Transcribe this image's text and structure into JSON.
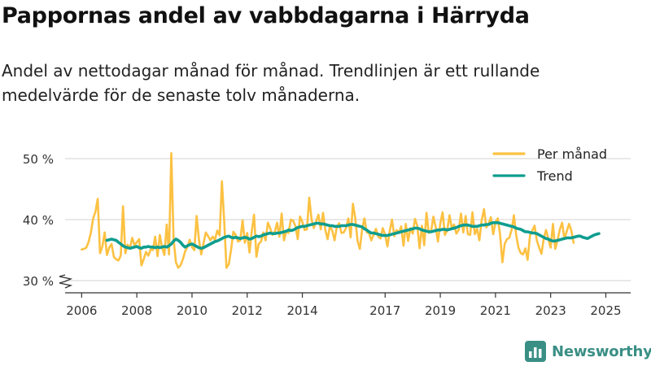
{
  "header": {
    "title": "Pappornas andel av vabbdagarna i Härryda",
    "subtitle": "Andel av nettodagar månad för månad. Trendlinjen är ett rullande medelvärde för de senaste tolv månaderna."
  },
  "brand": {
    "name": "Newsworthy",
    "icon": "bar-chart-logo-icon"
  },
  "colors": {
    "monthly": "#fcc142",
    "trend": "#0f9d8f",
    "grid": "#d9d9d9",
    "text": "#222222",
    "brand": "#3a8f85"
  },
  "chart_data": {
    "type": "line",
    "title": "Pappornas andel av vabbdagarna i Härryda",
    "xlabel": "",
    "ylabel": "",
    "ylim": [
      28,
      52
    ],
    "y_ticks": [
      30,
      40,
      50
    ],
    "y_tick_labels": [
      "30 %",
      "40 %",
      "50 %"
    ],
    "x_ticks": [
      2006,
      2008,
      2010,
      2012,
      2014,
      2017,
      2019,
      2021,
      2023,
      2025
    ],
    "x_range": [
      2005.4,
      2025.9
    ],
    "y_axis_break": true,
    "legend": {
      "position": "top-right",
      "entries": [
        "Per månad",
        "Trend"
      ]
    },
    "series": [
      {
        "name": "Per månad",
        "x_start": 2006.0,
        "step": 0.0833333,
        "values": [
          35.1,
          35.2,
          35.4,
          36.3,
          37.8,
          40.2,
          41.3,
          43.4,
          34.5,
          35.6,
          37.9,
          34.2,
          35.4,
          36.0,
          33.9,
          33.5,
          33.3,
          34.1,
          42.2,
          34.5,
          35.9,
          35.3,
          37.0,
          35.8,
          36.3,
          36.8,
          32.5,
          33.5,
          34.7,
          34.1,
          35.1,
          35.0,
          37.2,
          34.0,
          37.5,
          35.4,
          34.2,
          39.2,
          34.3,
          50.9,
          36.8,
          33.0,
          32.1,
          32.5,
          33.5,
          34.8,
          35.5,
          36.7,
          35.5,
          35.0,
          40.6,
          36.8,
          34.3,
          36.1,
          37.9,
          37.3,
          36.6,
          37.2,
          36.7,
          38.2,
          37.4,
          46.3,
          39.8,
          32.1,
          32.7,
          35.1,
          38.0,
          37.5,
          36.4,
          36.6,
          39.9,
          36.2,
          37.8,
          34.6,
          38.1,
          40.8,
          33.9,
          36.0,
          36.4,
          37.9,
          36.6,
          39.5,
          38.6,
          37.5,
          38.0,
          39.5,
          37.2,
          41.0,
          36.6,
          38.1,
          37.8,
          40.0,
          39.8,
          38.9,
          36.8,
          40.5,
          39.6,
          38.3,
          38.4,
          43.6,
          40.0,
          38.6,
          39.7,
          40.8,
          38.4,
          41.1,
          38.3,
          36.8,
          39.0,
          38.2,
          36.6,
          38.8,
          39.4,
          37.8,
          37.9,
          38.6,
          40.2,
          37.1,
          42.6,
          40.3,
          36.5,
          35.2,
          38.4,
          40.2,
          37.9,
          37.8,
          36.6,
          37.5,
          38.5,
          37.2,
          36.9,
          38.6,
          37.5,
          35.6,
          38.1,
          40.0,
          37.3,
          38.3,
          37.8,
          38.9,
          35.7,
          39.3,
          36.5,
          38.6,
          37.7,
          40.1,
          39.0,
          35.3,
          39.0,
          35.8,
          41.1,
          37.8,
          38.1,
          40.5,
          38.8,
          36.4,
          39.4,
          41.2,
          37.5,
          38.2,
          40.7,
          38.6,
          39.2,
          37.7,
          38.3,
          41.0,
          37.9,
          40.6,
          37.6,
          37.5,
          41.2,
          37.6,
          38.5,
          36.6,
          39.9,
          41.7,
          38.7,
          39.3,
          40.4,
          37.6,
          39.6,
          40.2,
          37.6,
          33.0,
          36.0,
          36.8,
          37.0,
          38.3,
          40.7,
          37.5,
          35.4,
          34.5,
          34.3,
          35.3,
          33.4,
          37.4,
          38.2,
          39.0,
          36.6,
          35.4,
          34.4,
          36.9,
          38.3,
          36.8,
          35.4,
          39.3,
          35.2,
          36.6,
          38.4,
          39.5,
          36.8,
          38.1,
          39.3,
          38.2,
          36.2
        ]
      },
      {
        "name": "Trend",
        "x_start": 2006.9167,
        "step": 0.0833333,
        "values": [
          36.6,
          36.7,
          36.8,
          36.7,
          36.6,
          36.3,
          36.0,
          35.7,
          35.5,
          35.4,
          35.3,
          35.4,
          35.5,
          35.6,
          35.4,
          35.3,
          35.5,
          35.5,
          35.6,
          35.5,
          35.5,
          35.4,
          35.5,
          35.4,
          35.5,
          35.6,
          35.5,
          35.7,
          36.0,
          36.5,
          36.8,
          36.6,
          36.3,
          35.8,
          35.5,
          35.7,
          35.9,
          36.0,
          35.8,
          35.6,
          35.4,
          35.3,
          35.4,
          35.6,
          35.8,
          36.0,
          36.2,
          36.4,
          36.5,
          36.7,
          36.9,
          37.1,
          37.2,
          37.3,
          37.1,
          37.0,
          37.1,
          37.0,
          36.9,
          37.0,
          37.1,
          37.0,
          36.8,
          36.9,
          37.1,
          37.3,
          37.2,
          37.3,
          37.5,
          37.6,
          37.7,
          37.8,
          37.7,
          37.7,
          37.8,
          37.8,
          37.9,
          38.0,
          38.1,
          38.3,
          38.2,
          38.3,
          38.5,
          38.7,
          38.8,
          38.9,
          38.9,
          39.0,
          39.1,
          39.2,
          39.3,
          39.4,
          39.4,
          39.3,
          39.3,
          39.2,
          39.1,
          39.0,
          39.0,
          38.9,
          38.9,
          38.9,
          39.0,
          39.0,
          39.0,
          39.1,
          39.2,
          39.2,
          39.1,
          39.0,
          38.9,
          38.8,
          38.5,
          38.3,
          38.0,
          37.8,
          37.8,
          37.7,
          37.6,
          37.5,
          37.4,
          37.4,
          37.4,
          37.5,
          37.6,
          37.7,
          37.8,
          37.9,
          38.0,
          38.1,
          38.2,
          38.3,
          38.4,
          38.5,
          38.6,
          38.6,
          38.5,
          38.3,
          38.2,
          38.1,
          38.0,
          38.0,
          38.1,
          38.2,
          38.3,
          38.3,
          38.4,
          38.4,
          38.3,
          38.4,
          38.5,
          38.6,
          38.7,
          38.9,
          39.0,
          39.1,
          39.1,
          39.1,
          39.0,
          38.9,
          38.9,
          38.9,
          39.0,
          39.1,
          39.1,
          39.2,
          39.2,
          39.4,
          39.5,
          39.5,
          39.5,
          39.4,
          39.3,
          39.2,
          39.1,
          39.0,
          38.9,
          38.8,
          38.6,
          38.5,
          38.4,
          38.2,
          38.0,
          38.0,
          37.9,
          37.8,
          37.8,
          37.7,
          37.5,
          37.3,
          37.1,
          36.9,
          36.8,
          36.6,
          36.5,
          36.5,
          36.6,
          36.7,
          36.8,
          36.9,
          37.0,
          37.0,
          37.0,
          37.1,
          37.2,
          37.3,
          37.3,
          37.1,
          37.0,
          36.9,
          37.1,
          37.3,
          37.5,
          37.6,
          37.7
        ]
      }
    ]
  }
}
